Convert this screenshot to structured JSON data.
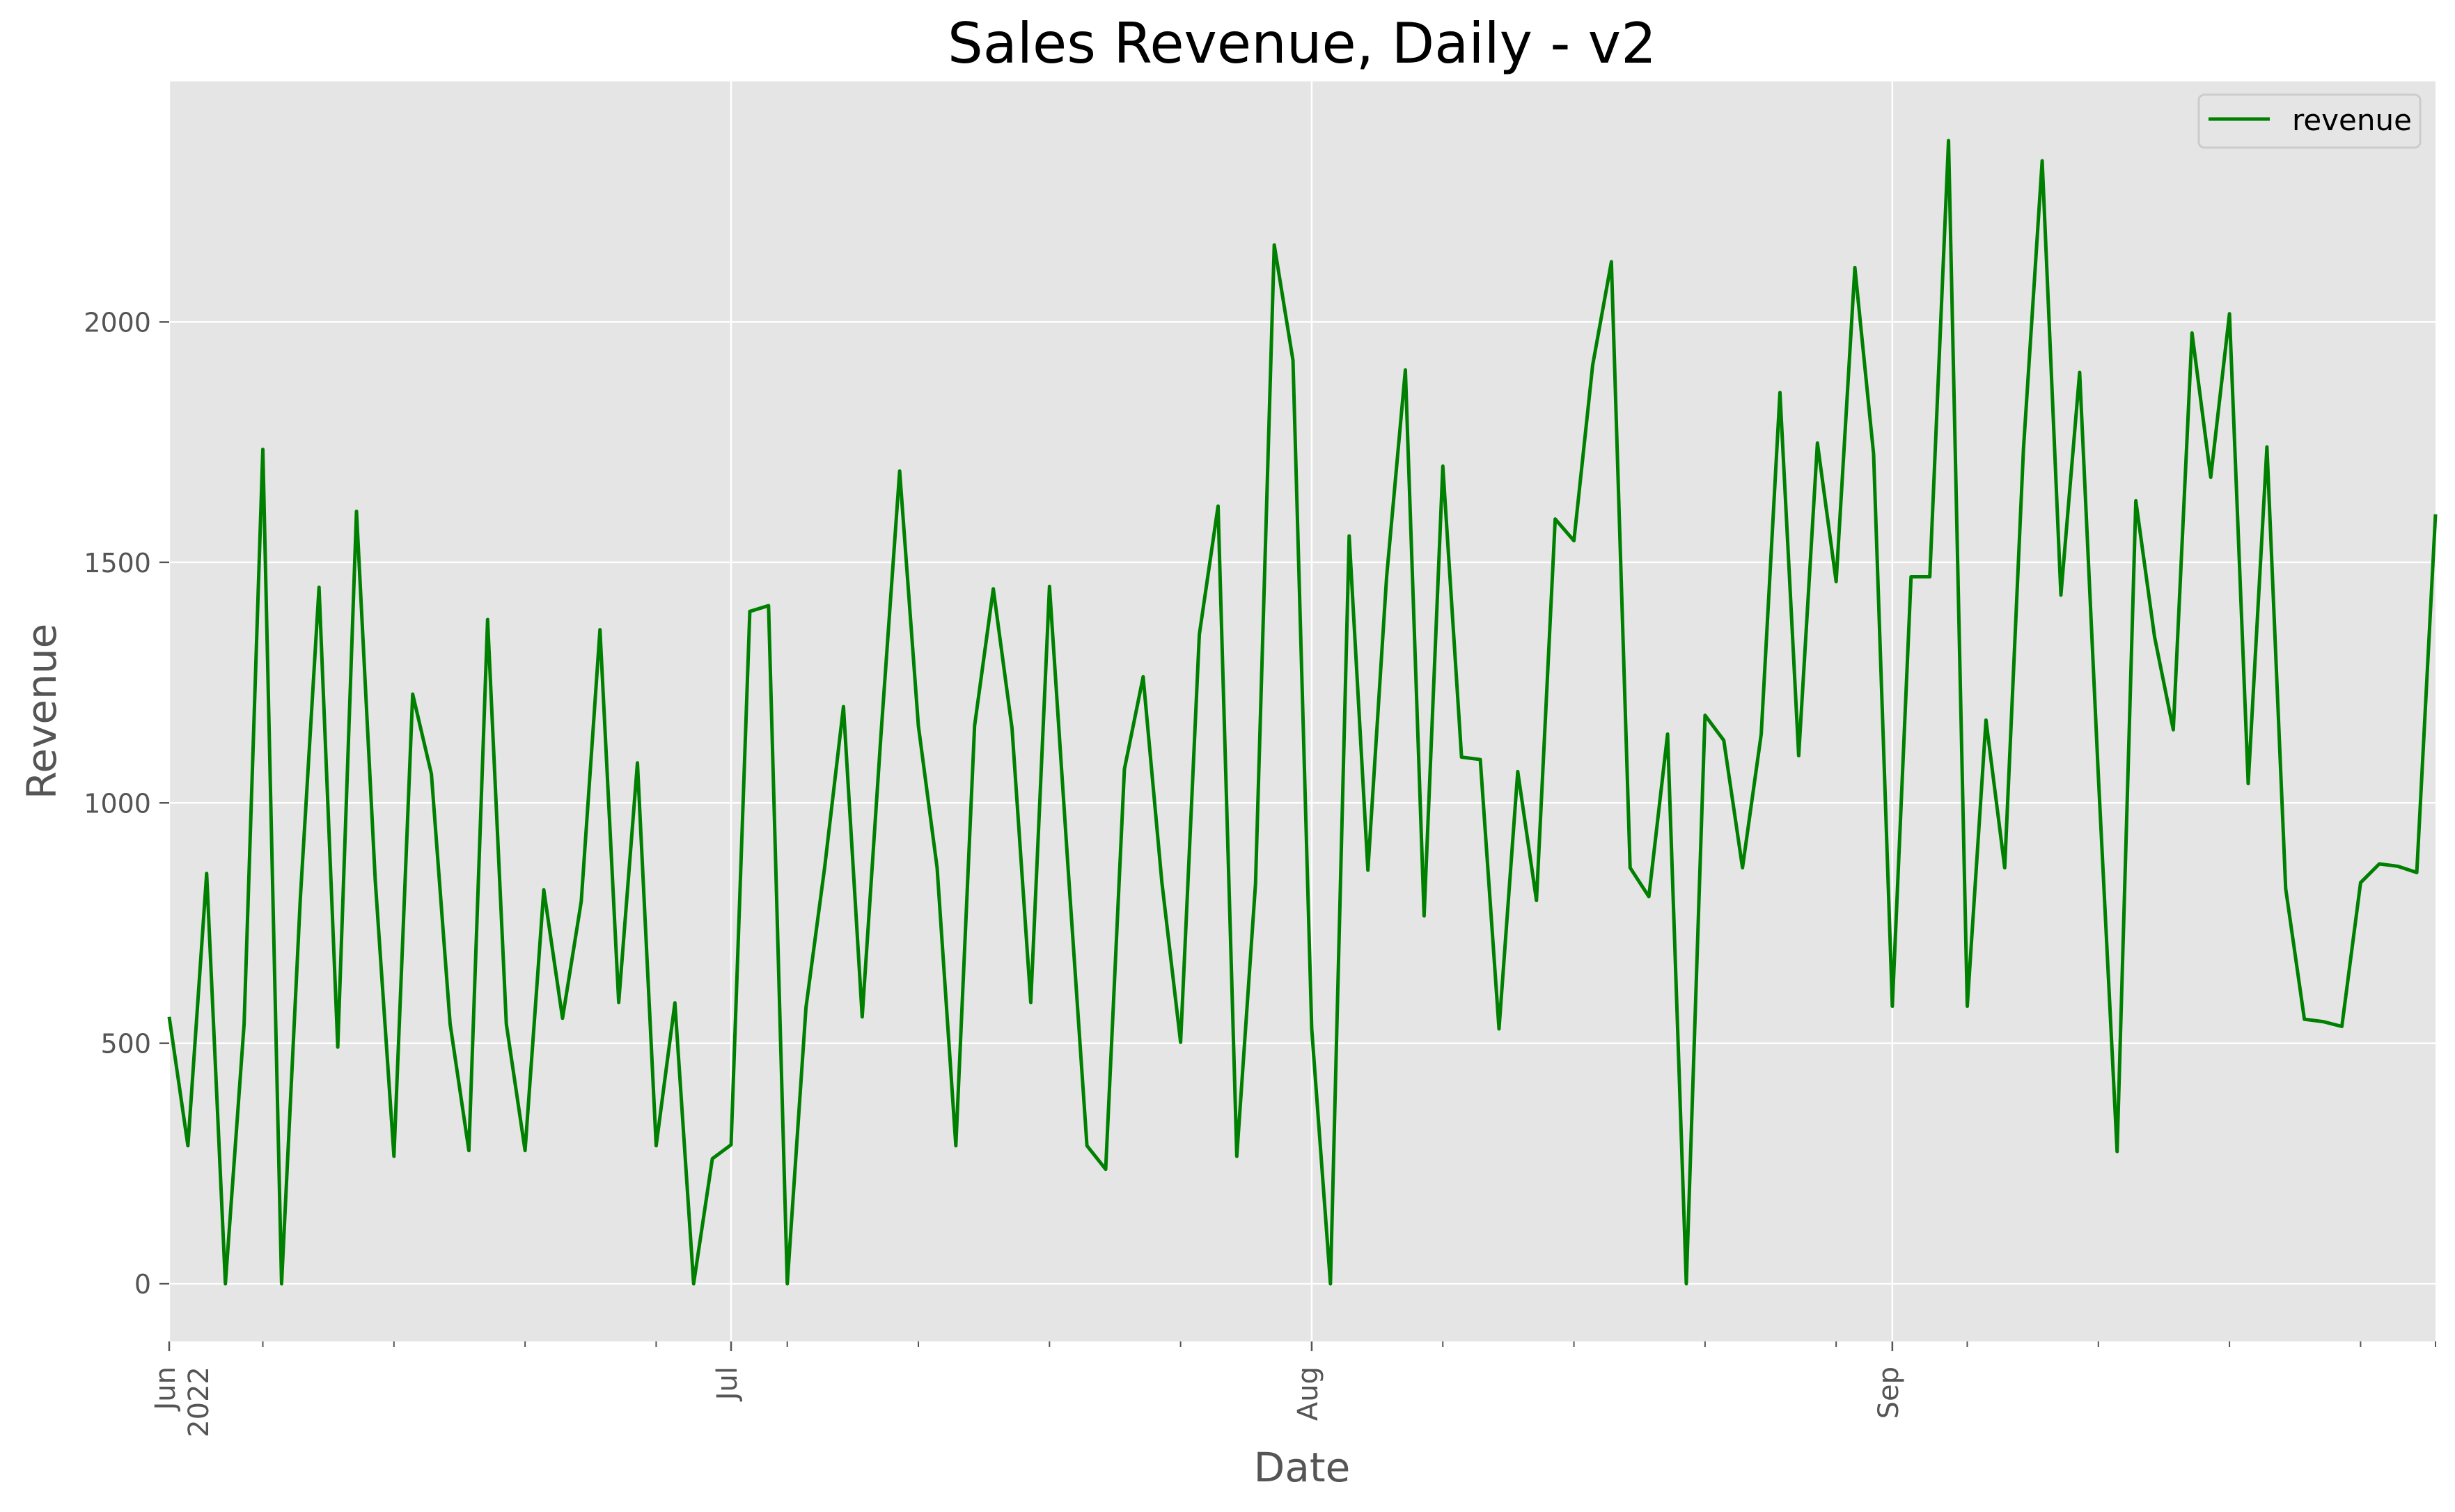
{
  "chart_data": {
    "type": "line",
    "title": "Sales Revenue, Daily - v2",
    "xlabel": "Date",
    "ylabel": "Revenue",
    "x_start": "2022-06-01",
    "x_end": "2022-09-30",
    "ylim": [
      -120,
      2500
    ],
    "yticks": [
      0,
      500,
      1000,
      1500,
      2000
    ],
    "xticks": [
      {
        "date": "2022-06-01",
        "label": "Jun",
        "sublabel": "2022"
      },
      {
        "date": "2022-07-01",
        "label": "Jul",
        "sublabel": ""
      },
      {
        "date": "2022-08-01",
        "label": "Aug",
        "sublabel": ""
      },
      {
        "date": "2022-09-01",
        "label": "Sep",
        "sublabel": ""
      }
    ],
    "grid": true,
    "legend_position": "top-right",
    "background": "#e5e5e5",
    "series": [
      {
        "name": "revenue",
        "color": "#008000",
        "values": [
          555,
          287,
          853,
          0,
          540,
          1735,
          0,
          800,
          1448,
          492,
          1606,
          840,
          265,
          1226,
          1060,
          540,
          277,
          1381,
          540,
          277,
          819,
          552,
          795,
          1360,
          585,
          1083,
          287,
          584,
          0,
          260,
          289,
          1398,
          1410,
          0,
          575,
          867,
          1200,
          555,
          1140,
          1690,
          1160,
          865,
          287,
          1160,
          1445,
          1155,
          585,
          1450,
          860,
          287,
          238,
          1070,
          1262,
          835,
          502,
          1350,
          1617,
          265,
          832,
          2160,
          1920,
          530,
          0,
          1555,
          860,
          1470,
          1900,
          765,
          1700,
          1095,
          1090,
          530,
          1065,
          797,
          1590,
          1545,
          1910,
          2125,
          865,
          805,
          1143,
          0,
          1182,
          1130,
          865,
          1143,
          1853,
          1098,
          1748,
          1460,
          2113,
          1725,
          577,
          1470,
          1470,
          2377,
          577,
          1172,
          865,
          1735,
          2335,
          1432,
          1895,
          1055,
          275,
          1628,
          1345,
          1152,
          1977,
          1677,
          2017,
          1040,
          1740,
          822,
          550,
          545,
          535,
          834,
          873,
          868,
          855,
          1600
        ]
      }
    ]
  }
}
